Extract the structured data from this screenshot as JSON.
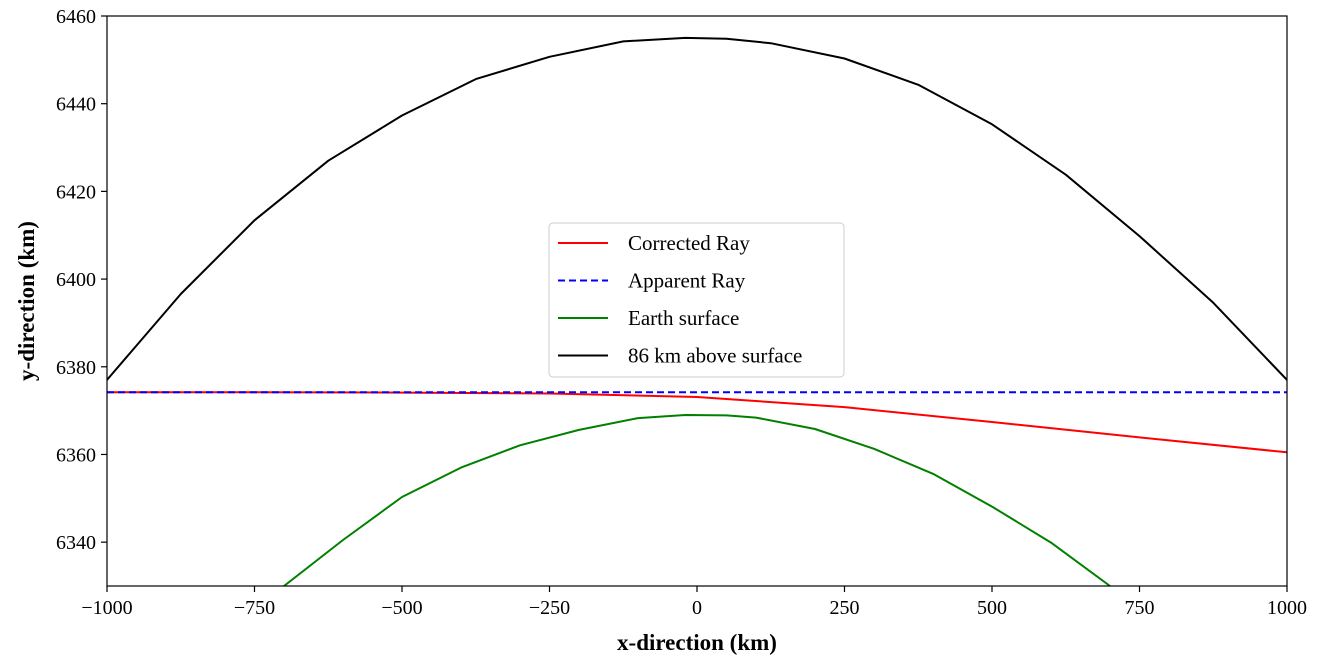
{
  "chart_data": {
    "type": "line",
    "title": "",
    "xlabel": "x-direction (km)",
    "ylabel": "y-direction (km)",
    "xlim": [
      -1000,
      1000
    ],
    "ylim": [
      6330,
      6460
    ],
    "xticks": [
      -1000,
      -750,
      -500,
      -250,
      0,
      250,
      500,
      750,
      1000
    ],
    "xtick_labels": [
      "−1000",
      "−750",
      "−500",
      "−250",
      "0",
      "250",
      "500",
      "750",
      "1000"
    ],
    "yticks": [
      6340,
      6360,
      6380,
      6400,
      6420,
      6440,
      6460
    ],
    "ytick_labels": [
      "6340",
      "6360",
      "6380",
      "6400",
      "6420",
      "6440",
      "6460"
    ],
    "grid": false,
    "legend_position": "center",
    "series": [
      {
        "name": "Corrected Ray",
        "color": "#ff0000",
        "style": "solid",
        "x": [
          -1000,
          -750,
          -500,
          -250,
          0,
          250,
          500,
          750,
          1000
        ],
        "y": [
          6374.2,
          6374.2,
          6374.1,
          6373.9,
          6373.1,
          6370.8,
          6367.4,
          6363.9,
          6360.5
        ]
      },
      {
        "name": "Apparent Ray",
        "color": "#0000ff",
        "style": "dashed",
        "x": [
          -1000,
          1000
        ],
        "y": [
          6374.2,
          6374.2
        ]
      },
      {
        "name": "Earth surface",
        "color": "#008000",
        "style": "solid",
        "x": [
          -700,
          -600,
          -500,
          -400,
          -300,
          -200,
          -100,
          -20,
          50,
          100,
          200,
          300,
          400,
          500,
          600,
          700
        ],
        "y": [
          6330,
          6340.5,
          6350.3,
          6357.0,
          6362.1,
          6365.6,
          6368.3,
          6369.0,
          6368.9,
          6368.4,
          6365.8,
          6361.3,
          6355.6,
          6348.1,
          6339.9,
          6330.0
        ]
      },
      {
        "name": "86 km above surface",
        "color": "#000000",
        "style": "solid",
        "x": [
          -1000,
          -875,
          -750,
          -625,
          -500,
          -375,
          -250,
          -125,
          -20,
          50,
          125,
          250,
          375,
          500,
          625,
          750,
          875,
          1000
        ],
        "y": [
          6377.0,
          6396.6,
          6413.4,
          6427.0,
          6437.3,
          6445.6,
          6450.7,
          6454.2,
          6455.0,
          6454.8,
          6453.8,
          6450.3,
          6444.3,
          6435.3,
          6423.8,
          6409.8,
          6394.6,
          6377.0
        ]
      }
    ]
  }
}
